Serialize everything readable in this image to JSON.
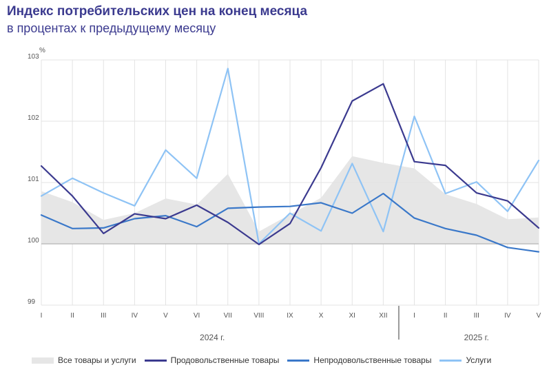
{
  "header": {
    "title": "Индекс потребительских цен на конец месяца",
    "subtitle": "в процентах к предыдущему месяцу"
  },
  "colors": {
    "title": "#3b3a8f",
    "all_goods_area": "#e6e6e6",
    "food": "#3b3a8f",
    "non_food": "#3a78c9",
    "services": "#8ec3f5"
  },
  "chart_data": {
    "type": "line",
    "unit": "%",
    "ylim": [
      99,
      103
    ],
    "yticks": [
      "99",
      "100",
      "101",
      "102",
      "103"
    ],
    "categories": [
      "I",
      "II",
      "III",
      "IV",
      "V",
      "VI",
      "VII",
      "VIII",
      "IX",
      "X",
      "XI",
      "XII",
      "I",
      "II",
      "III",
      "IV",
      "V"
    ],
    "years": [
      {
        "label": "2024 г.",
        "from": 0,
        "to": 11
      },
      {
        "label": "2025 г.",
        "from": 12,
        "to": 16
      }
    ],
    "grid": true,
    "legend_position": "bottom",
    "series": [
      {
        "name": "Все товары и услуги",
        "style": "area",
        "values": [
          100.86,
          100.68,
          100.39,
          100.5,
          100.74,
          100.64,
          101.14,
          100.2,
          100.48,
          100.75,
          101.43,
          101.32,
          101.23,
          100.81,
          100.65,
          100.4,
          100.43
        ]
      },
      {
        "name": "Продовольственные товары",
        "style": "line",
        "values": [
          101.27,
          100.78,
          100.17,
          100.49,
          100.41,
          100.63,
          100.35,
          99.99,
          100.33,
          101.24,
          102.33,
          102.61,
          101.34,
          101.28,
          100.83,
          100.7,
          100.26
        ]
      },
      {
        "name": "Непродовольственные товары",
        "style": "line",
        "values": [
          100.47,
          100.25,
          100.26,
          100.41,
          100.46,
          100.28,
          100.58,
          100.6,
          100.61,
          100.67,
          100.5,
          100.82,
          100.42,
          100.25,
          100.14,
          99.94,
          99.87
        ]
      },
      {
        "name": "Услуги",
        "style": "line",
        "values": [
          100.78,
          101.07,
          100.83,
          100.62,
          101.53,
          101.07,
          102.86,
          100.0,
          100.5,
          100.21,
          101.31,
          100.2,
          102.08,
          100.82,
          101.01,
          100.53,
          101.36
        ]
      }
    ]
  }
}
